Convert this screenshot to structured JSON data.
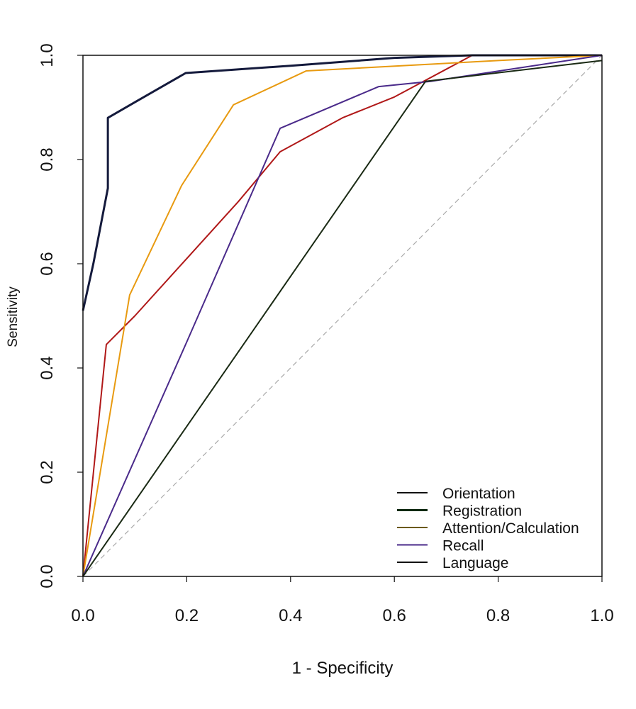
{
  "chart_data": {
    "type": "line",
    "title": "",
    "xlabel": "1 - Specificity",
    "ylabel": "Sensitivity",
    "xlim": [
      0,
      1
    ],
    "ylim": [
      0,
      1
    ],
    "x_ticks": [
      "0.0",
      "0.2",
      "0.4",
      "0.6",
      "0.8",
      "1.0"
    ],
    "y_ticks": [
      "0.0",
      "0.2",
      "0.4",
      "0.6",
      "0.8",
      "1.0"
    ],
    "grid": false,
    "legend_position": "bottom-right",
    "reference_line": {
      "style": "dashed",
      "color": "#aaaaaa",
      "points": [
        [
          0,
          0
        ],
        [
          1,
          1
        ]
      ]
    },
    "series": [
      {
        "name": "Orientation",
        "color": "#b01818",
        "legend_color": "#111111",
        "width": 2,
        "points": [
          [
            0,
            0
          ],
          [
            0.045,
            0.445
          ],
          [
            0.1,
            0.5
          ],
          [
            0.2,
            0.61
          ],
          [
            0.3,
            0.72
          ],
          [
            0.38,
            0.815
          ],
          [
            0.5,
            0.88
          ],
          [
            0.6,
            0.92
          ],
          [
            0.75,
            1.0
          ],
          [
            1,
            1
          ]
        ]
      },
      {
        "name": "Registration",
        "color": "#141a3c",
        "legend_color": "#0f2a12",
        "width": 3,
        "points": [
          [
            0,
            0.51
          ],
          [
            0.02,
            0.6
          ],
          [
            0.048,
            0.745
          ],
          [
            0.048,
            0.88
          ],
          [
            0.1,
            0.91
          ],
          [
            0.198,
            0.966
          ],
          [
            0.4,
            0.98
          ],
          [
            0.6,
            0.995
          ],
          [
            0.75,
            1.0
          ],
          [
            1,
            1
          ]
        ]
      },
      {
        "name": "Attention/Calculation",
        "color": "#e89a10",
        "legend_color": "#6b5a1a",
        "width": 2,
        "points": [
          [
            0,
            0
          ],
          [
            0.05,
            0.3
          ],
          [
            0.09,
            0.54
          ],
          [
            0.19,
            0.75
          ],
          [
            0.29,
            0.905
          ],
          [
            0.43,
            0.97
          ],
          [
            0.8,
            0.99
          ],
          [
            1,
            1
          ]
        ]
      },
      {
        "name": "Recall",
        "color": "#4a2a8a",
        "legend_color": "#4a2a8a",
        "width": 2,
        "points": [
          [
            0,
            0
          ],
          [
            0.2,
            0.45
          ],
          [
            0.38,
            0.86
          ],
          [
            0.57,
            0.94
          ],
          [
            0.67,
            0.95
          ],
          [
            1,
            1
          ]
        ]
      },
      {
        "name": "Language",
        "color": "#1a2a14",
        "legend_color": "#111111",
        "width": 2,
        "points": [
          [
            0,
            0
          ],
          [
            0.66,
            0.95
          ],
          [
            1,
            0.99
          ]
        ]
      }
    ]
  }
}
